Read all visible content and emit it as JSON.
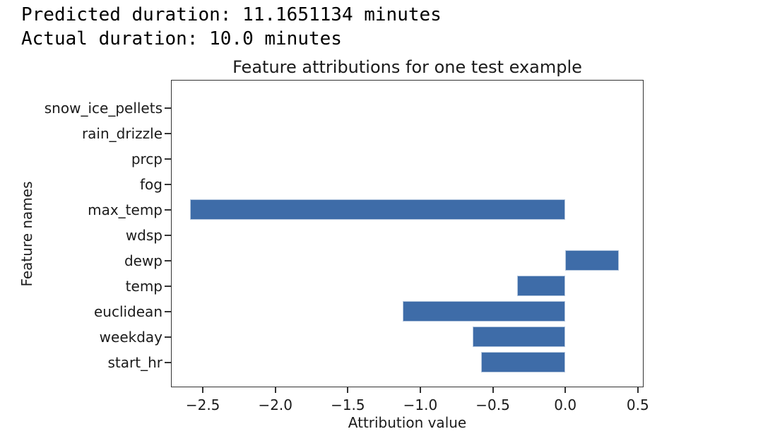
{
  "header": {
    "line1": "Predicted duration: 11.1651134 minutes",
    "line2": "Actual duration: 10.0 minutes"
  },
  "chart_data": {
    "type": "bar",
    "orientation": "horizontal",
    "title": "Feature attributions for one test example",
    "xlabel": "Attribution value",
    "ylabel": "Feature names",
    "categories": [
      "snow_ice_pellets",
      "rain_drizzle",
      "prcp",
      "fog",
      "max_temp",
      "wdsp",
      "dewp",
      "temp",
      "euclidean",
      "weekday",
      "start_hr"
    ],
    "values": [
      0,
      0,
      0,
      0,
      -2.59,
      0,
      0.37,
      -0.33,
      -1.12,
      -0.64,
      -0.58
    ],
    "xlim": [
      -2.72,
      0.54
    ],
    "xticks": [
      -2.5,
      -2.0,
      -1.5,
      -1.0,
      -0.5,
      0.0,
      0.5
    ],
    "xtick_labels": [
      "−2.5",
      "−2.0",
      "−1.5",
      "−1.0",
      "−0.5",
      "0.0",
      "0.5"
    ],
    "grid": false,
    "legend": null,
    "bar_color": "#3e6ca8",
    "bar_edge_color": "#b5c7de",
    "spine_color": "#333333",
    "text_color": "#1b1b1b"
  }
}
